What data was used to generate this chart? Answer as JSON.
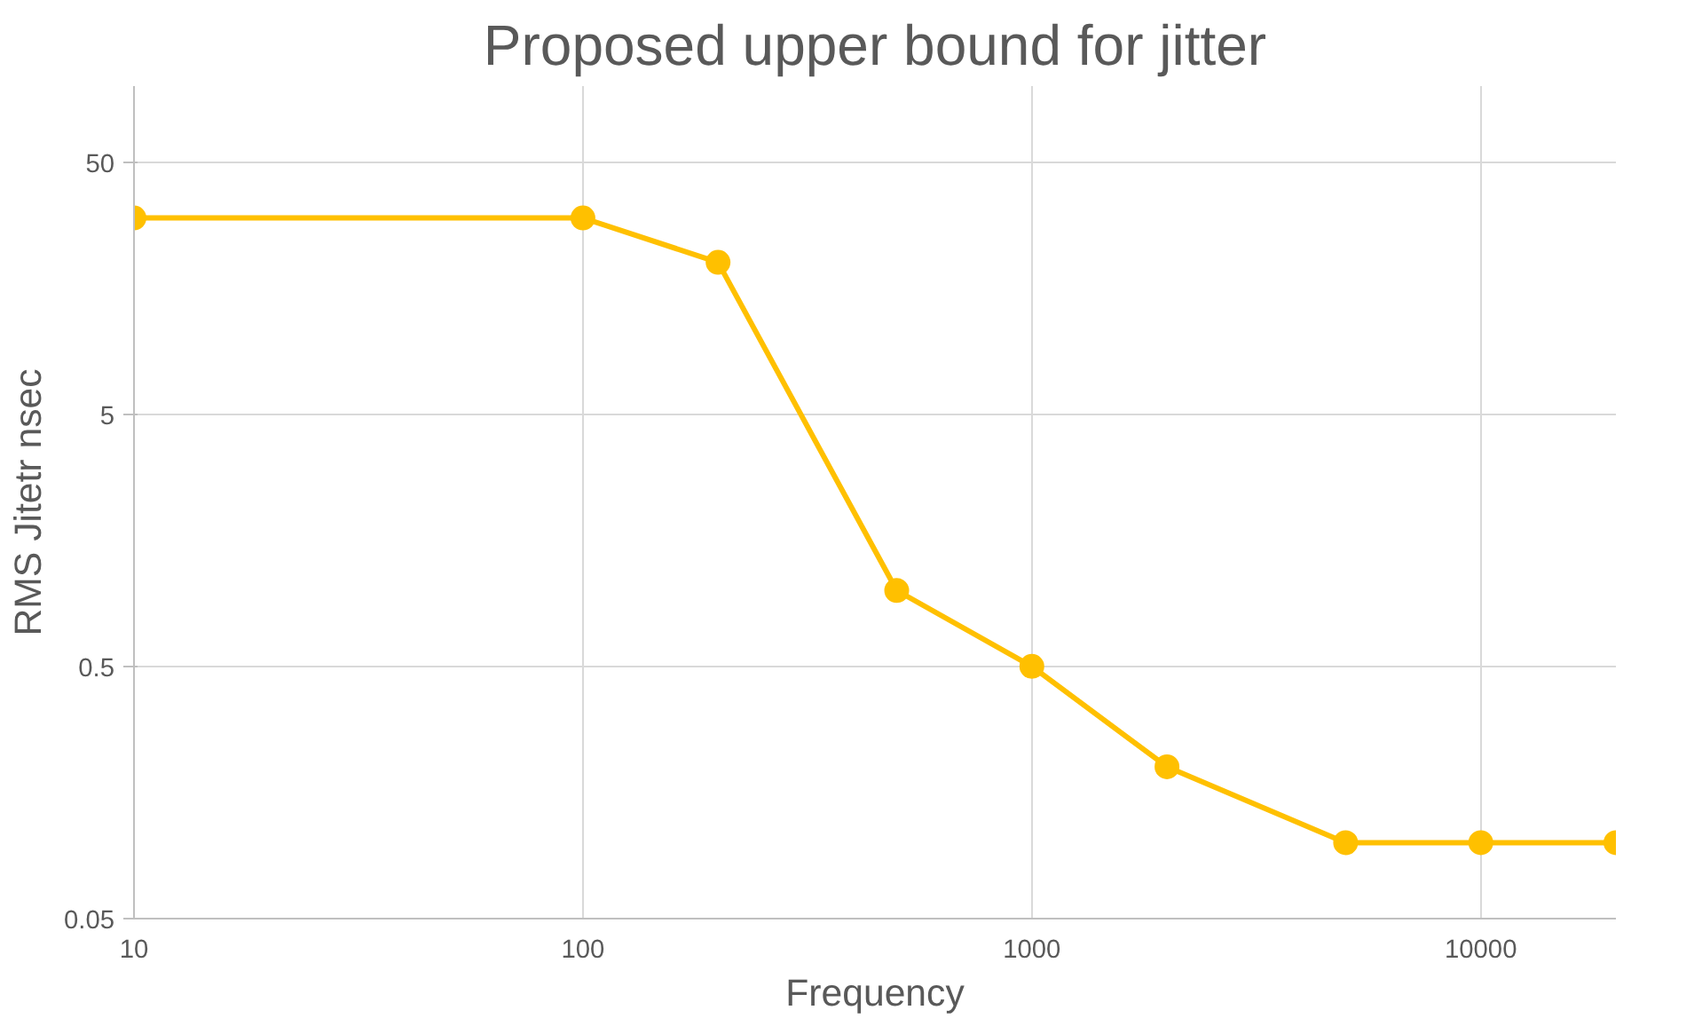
{
  "chart_data": {
    "type": "line",
    "title": "Proposed upper bound for jitter",
    "xlabel": "Frequency",
    "ylabel": "RMS Jitetr nsec",
    "x": [
      10,
      100,
      200,
      500,
      1000,
      2000,
      5000,
      10000,
      20000
    ],
    "series": [
      {
        "color": "#ffc000",
        "values": [
          30,
          30,
          20,
          1,
          0.5,
          0.2,
          0.1,
          0.1,
          0.1
        ]
      }
    ],
    "log": "xy",
    "xlim": [
      10,
      20000
    ],
    "ylim": [
      0.05,
      100
    ],
    "xticks": [
      10,
      100,
      1000,
      10000
    ],
    "yticks": [
      0.05,
      0.5,
      5,
      50
    ],
    "grid": true,
    "marker": "circle",
    "line_style": "solid"
  }
}
